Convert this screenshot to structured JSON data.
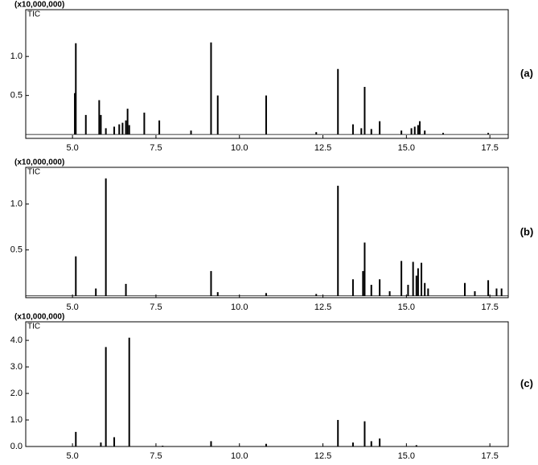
{
  "chart_data": [
    {
      "type": "stem",
      "header": "(x10,000,000)",
      "trace": "TIC",
      "panel_label": "(a)",
      "color": "#000000",
      "x": [
        5.07,
        5.1,
        5.4,
        5.8,
        5.85,
        6.0,
        6.25,
        6.4,
        6.5,
        6.6,
        6.65,
        6.7,
        7.15,
        7.6,
        8.55,
        9.15,
        9.35,
        10.8,
        12.3,
        12.95,
        13.4,
        13.65,
        13.75,
        13.95,
        14.2,
        14.85,
        15.15,
        15.25,
        15.35,
        15.4,
        15.55,
        16.1,
        17.45
      ],
      "values": [
        0.53,
        1.17,
        0.25,
        0.44,
        0.25,
        0.08,
        0.1,
        0.13,
        0.15,
        0.18,
        0.33,
        0.12,
        0.28,
        0.18,
        0.05,
        1.18,
        0.5,
        0.5,
        0.03,
        0.84,
        0.13,
        0.08,
        0.61,
        0.07,
        0.17,
        0.05,
        0.08,
        0.1,
        0.12,
        0.17,
        0.05,
        0.02,
        0.02
      ],
      "xlim": [
        3.6,
        18.05
      ],
      "xticks": [
        {
          "value": 5,
          "label": "5.0"
        },
        {
          "value": 7.5,
          "label": "7.5"
        },
        {
          "value": 10,
          "label": "10.0"
        },
        {
          "value": 12.5,
          "label": "12.5"
        },
        {
          "value": 15,
          "label": "15.0"
        },
        {
          "value": 17.5,
          "label": "17.5"
        }
      ],
      "ylim": [
        -0.05,
        1.6
      ],
      "yticks": [
        0.5,
        {
          "value": 1,
          "label": "1.0"
        }
      ]
    },
    {
      "type": "stem",
      "header": "(x10,000,000)",
      "trace": "TIC",
      "panel_label": "(b)",
      "color": "#000000",
      "x": [
        5.1,
        5.7,
        6.0,
        6.6,
        9.15,
        9.35,
        10.8,
        12.3,
        12.95,
        13.4,
        13.7,
        13.75,
        13.95,
        14.2,
        14.5,
        14.85,
        15.05,
        15.2,
        15.3,
        15.35,
        15.45,
        15.55,
        15.65,
        16.75,
        17.05,
        17.45,
        17.7,
        17.85
      ],
      "values": [
        0.43,
        0.08,
        1.28,
        0.13,
        0.27,
        0.04,
        0.03,
        0.02,
        1.2,
        0.18,
        0.27,
        0.58,
        0.12,
        0.18,
        0.05,
        0.38,
        0.12,
        0.37,
        0.22,
        0.3,
        0.36,
        0.14,
        0.08,
        0.14,
        0.05,
        0.17,
        0.08,
        0.08
      ],
      "xlim": [
        3.6,
        18.05
      ],
      "xticks": [
        {
          "value": 5,
          "label": "5.0"
        },
        {
          "value": 7.5,
          "label": "7.5"
        },
        {
          "value": 10,
          "label": "10.0"
        },
        {
          "value": 12.5,
          "label": "12.5"
        },
        {
          "value": 15,
          "label": "15.0"
        },
        {
          "value": 17.5,
          "label": "17.5"
        }
      ],
      "ylim": [
        -0.02,
        1.4
      ],
      "yticks": [
        0.5,
        {
          "value": 1,
          "label": "1.0"
        }
      ]
    },
    {
      "type": "stem",
      "header": "(x10,000,000)",
      "trace": "TIC",
      "panel_label": "(c)",
      "color": "#000000",
      "x": [
        5.1,
        5.85,
        6.0,
        6.25,
        6.7,
        7.7,
        9.15,
        10.8,
        12.95,
        13.4,
        13.75,
        13.95,
        14.2,
        15.3
      ],
      "values": [
        0.55,
        0.15,
        3.75,
        0.35,
        4.1,
        0.03,
        0.2,
        0.1,
        1.0,
        0.15,
        0.95,
        0.2,
        0.3,
        0.05
      ],
      "xlim": [
        3.6,
        18.05
      ],
      "xticks": [
        {
          "value": 5,
          "label": "5.0"
        },
        {
          "value": 7.5,
          "label": "7.5"
        },
        {
          "value": 10,
          "label": "10.0"
        },
        {
          "value": 12.5,
          "label": "12.5"
        },
        {
          "value": 15,
          "label": "15.0"
        },
        {
          "value": 17.5,
          "label": "17.5"
        }
      ],
      "ylim": [
        0,
        4.7
      ],
      "yticks": [
        {
          "value": 0,
          "label": "0.0"
        },
        {
          "value": 1,
          "label": "1.0"
        },
        {
          "value": 2,
          "label": "2.0"
        },
        {
          "value": 3,
          "label": "3.0"
        },
        {
          "value": 4,
          "label": "4.0"
        }
      ]
    }
  ]
}
